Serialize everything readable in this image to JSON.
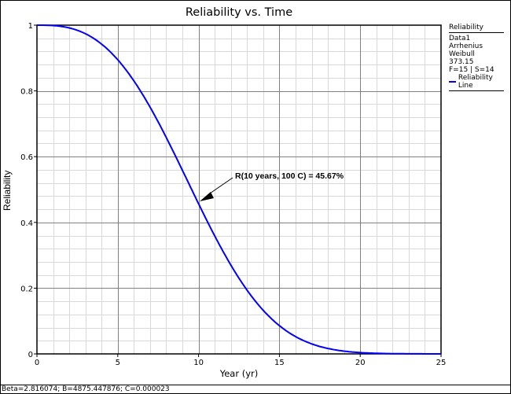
{
  "chart_data": {
    "type": "line",
    "title": "Reliability vs. Time",
    "xlabel": "Year (yr)",
    "ylabel": "Reliability",
    "xlim": [
      0,
      25
    ],
    "ylim": [
      0,
      1
    ],
    "x_ticks": [
      "0",
      "5",
      "10",
      "15",
      "20",
      "25"
    ],
    "y_ticks": [
      "0",
      "0.2",
      "0.4",
      "0.6",
      "0.8",
      "1"
    ],
    "grid": true,
    "legend_position": "right",
    "series": [
      {
        "name": "Reliability Line",
        "color": "#0000ff",
        "model": "Arrhenius-Weibull",
        "x": [
          0,
          1,
          2,
          3,
          4,
          5,
          6,
          7,
          8,
          9,
          10,
          11,
          12,
          13,
          14,
          15,
          16,
          17,
          18,
          19,
          20,
          21,
          22,
          23,
          24,
          25
        ],
        "values": [
          1.0,
          0.999,
          0.992,
          0.974,
          0.942,
          0.895,
          0.83,
          0.75,
          0.659,
          0.56,
          0.4567,
          0.357,
          0.266,
          0.189,
          0.127,
          0.081,
          0.049,
          0.028,
          0.015,
          0.007,
          0.003,
          0.001,
          0.0006,
          0.0002,
          0.0001,
          0.0
        ]
      }
    ],
    "annotations": [
      {
        "text": "R(10 years, 100 C) = 45.67%",
        "x": 10,
        "y": 0.4567,
        "arrow": true
      }
    ]
  },
  "legend": {
    "title": "Reliability",
    "lines": [
      "Data1",
      "Arrhenius",
      "Weibull",
      "373.15",
      "F=15 | S=14"
    ],
    "series_label": "Reliability Line"
  },
  "status_bar": {
    "text": "Beta=2.816074; B=4875.447876; C=0.000023"
  }
}
